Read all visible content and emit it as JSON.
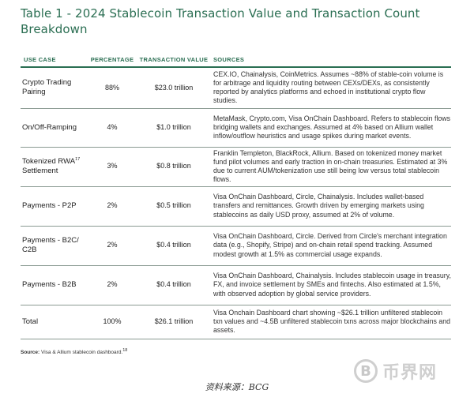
{
  "title": "Table 1 - 2024 Stablecoin Transaction Value and Transaction Count Breakdown",
  "headers": {
    "use_case": "USE CASE",
    "percentage": "PERCENTAGE",
    "value": "TRANSACTION VALUE",
    "sources": "SOURCES"
  },
  "rows": [
    {
      "use_case": "Crypto Trading Pairing",
      "percentage": "88%",
      "value": "$23.0 trillion",
      "sources": "CEX.IO, Chainalysis, CoinMetrics. Assumes ~88% of stable-coin volume is for arbitrage and liquidity routing between CEXs/DEXs, as consistently reported by analytics platforms and echoed in institutional crypto flow studies."
    },
    {
      "use_case": "On/Off-Ramping",
      "percentage": "4%",
      "value": "$1.0 trillion",
      "sources": "MetaMask, Crypto.com, Visa OnChain Dashboard. Refers to stablecoin flows bridging wallets and exchanges. Assumed at 4% based on Allium wallet inflow/outflow heuristics and usage spikes during market events."
    },
    {
      "use_case": "Tokenized RWA",
      "use_case_sup": "17",
      "use_case_2": "Settlement",
      "percentage": "3%",
      "value": "$0.8 trillion",
      "sources": "Franklin Templeton, BlackRock, Allium. Based on tokenized money market fund pilot volumes and early traction in on-chain treasuries. Estimated at 3% due to current AUM/tokenization use still being low versus total stablecoin flows."
    },
    {
      "use_case": "Payments - P2P",
      "percentage": "2%",
      "value": "$0.5 trillion",
      "sources": "Visa OnChain Dashboard, Circle, Chainalysis. Includes wallet-based transfers and remittances. Growth driven by emerging markets using stablecoins as daily USD proxy, assumed at 2% of volume."
    },
    {
      "use_case": "Payments - B2C/ C2B",
      "percentage": "2%",
      "value": "$0.4 trillion",
      "sources": "Visa OnChain Dashboard, Circle. Derived from Circle's merchant integration data (e.g., Shopify, Stripe) and on-chain retail spend tracking. Assumed modest growth at 1.5% as commercial usage expands."
    },
    {
      "use_case": "Payments - B2B",
      "percentage": "2%",
      "value": "$0.4 trillion",
      "sources": "Visa OnChain Dashboard, Chainalysis. Includes stablecoin usage in treasury, FX, and invoice settlement by SMEs and fintechs. Also estimated at 1.5%, with observed adoption by global service providers."
    },
    {
      "use_case": "Total",
      "percentage": "100%",
      "value": "$26.1 trillion",
      "sources": "Visa Onchain Dashboard chart showing ~$26.1 trillion unfiltered stablecoin txn values and ~4.5B unfiltered stablecoin txns across major blockchains and assets."
    }
  ],
  "source_note": {
    "label": "Source:",
    "text": "Visa & Allium stablecoin dashboard.",
    "sup": "18"
  },
  "watermark": {
    "logo_char": "B",
    "text": "币界网"
  },
  "caption": "资料来源：BCG"
}
